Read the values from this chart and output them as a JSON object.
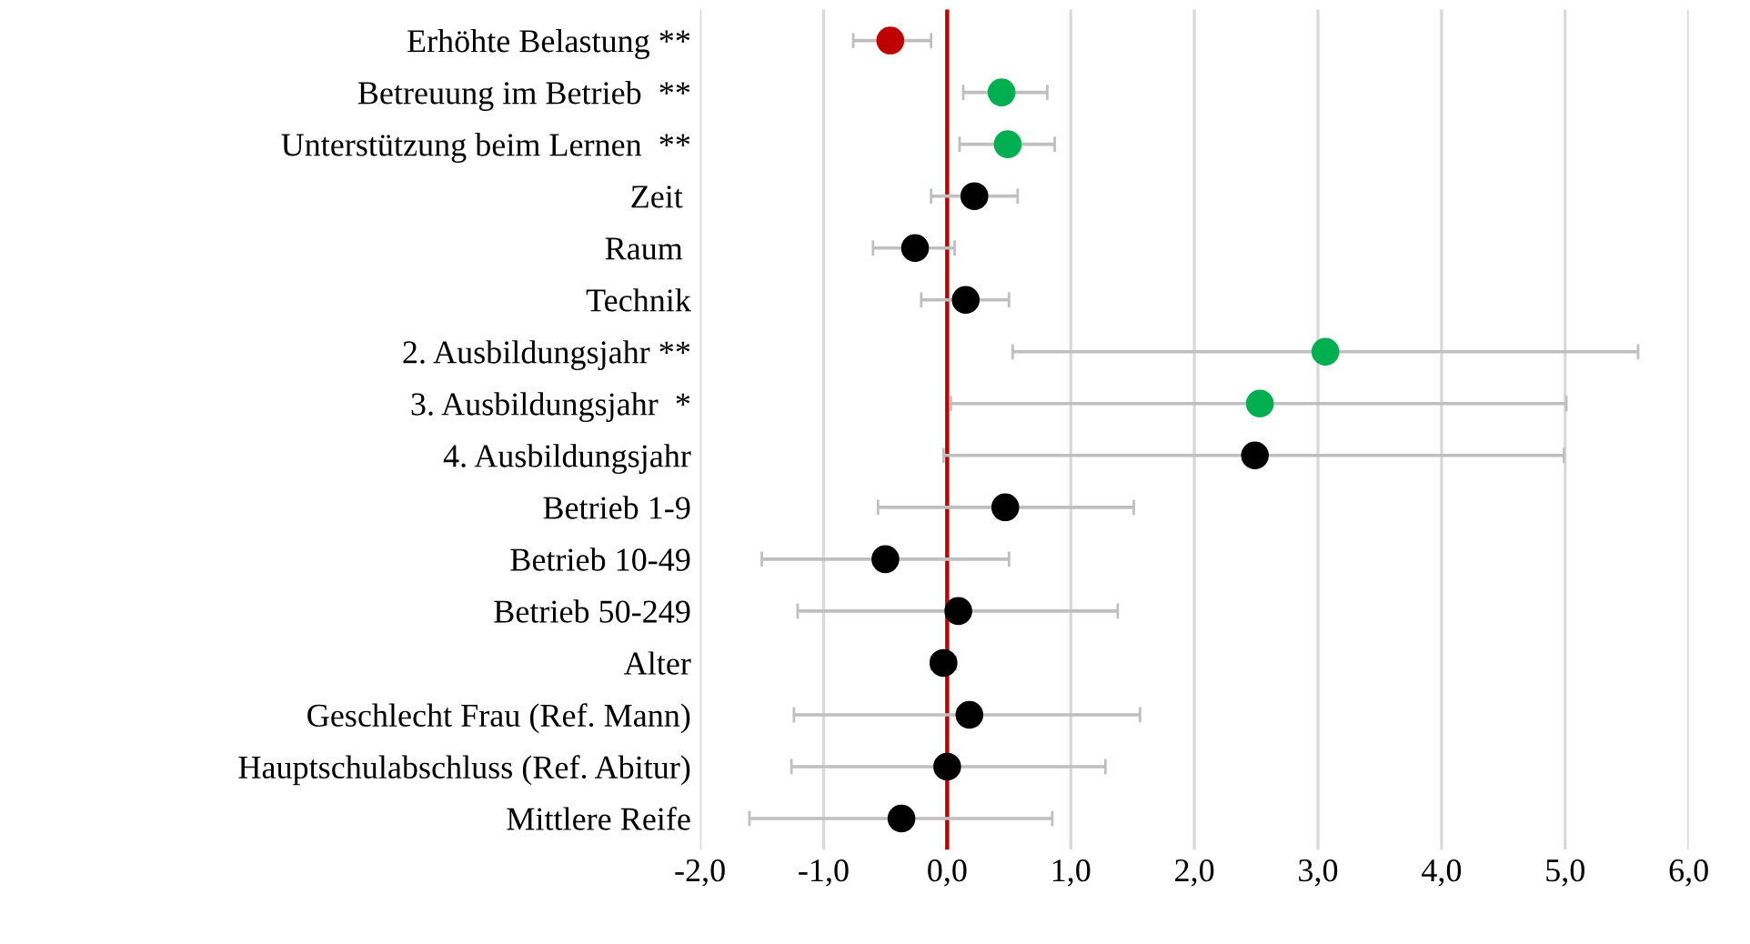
{
  "chart_data": {
    "type": "scatter",
    "orientation": "horizontal",
    "categories": [
      "Erhöhte Belastung **",
      "Betreuung im Betrieb  **",
      "Unterstützung beim Lernen  **",
      "Zeit ",
      "Raum ",
      "Technik",
      "2. Ausbildungsjahr **",
      "3. Ausbildungsjahr  *",
      "4. Ausbildungsjahr",
      "Betrieb 1-9",
      "Betrieb 10-49",
      "Betrieb 50-249",
      "Alter",
      "Geschlecht Frau (Ref. Mann)",
      "Hauptschulabschluss (Ref. Abitur)",
      "Mittlere Reife"
    ],
    "values": [
      -0.46,
      0.44,
      0.49,
      0.22,
      -0.26,
      0.15,
      3.06,
      2.53,
      2.49,
      0.47,
      -0.5,
      0.09,
      -0.03,
      0.18,
      0.0,
      -0.37
    ],
    "errors": [
      [
        -0.76,
        -0.13
      ],
      [
        0.13,
        0.81
      ],
      [
        0.1,
        0.87
      ],
      [
        -0.13,
        0.57
      ],
      [
        -0.6,
        0.06
      ],
      [
        -0.21,
        0.5
      ],
      [
        0.53,
        5.59
      ],
      [
        0.03,
        5.01
      ],
      [
        -0.03,
        4.99
      ],
      [
        -0.56,
        1.51
      ],
      [
        -1.5,
        0.5
      ],
      [
        -1.21,
        1.38
      ],
      [
        -0.13,
        0.07
      ],
      [
        -1.24,
        1.56
      ],
      [
        -1.26,
        1.28
      ],
      [
        -1.6,
        0.85
      ]
    ],
    "colors": [
      "#c00000",
      "#00b050",
      "#00b050",
      "#000000",
      "#000000",
      "#000000",
      "#00b050",
      "#00b050",
      "#000000",
      "#000000",
      "#000000",
      "#000000",
      "#000000",
      "#000000",
      "#000000",
      "#000000"
    ],
    "xlim": [
      -2,
      6
    ],
    "xticks": [
      {
        "value": -2,
        "label": "-2,0"
      },
      {
        "value": -1,
        "label": "-1,0"
      },
      {
        "value": 0,
        "label": "0,0"
      },
      {
        "value": 1,
        "label": "1,0"
      },
      {
        "value": 2,
        "label": "2,0"
      },
      {
        "value": 3,
        "label": "3,0"
      },
      {
        "value": 4,
        "label": "4,0"
      },
      {
        "value": 5,
        "label": "5,0"
      },
      {
        "value": 6,
        "label": "6,0"
      }
    ],
    "ref_lines": [
      {
        "axis": "x",
        "value": 0,
        "color": "#c00000"
      }
    ],
    "grid": "x",
    "marker": "circle"
  }
}
